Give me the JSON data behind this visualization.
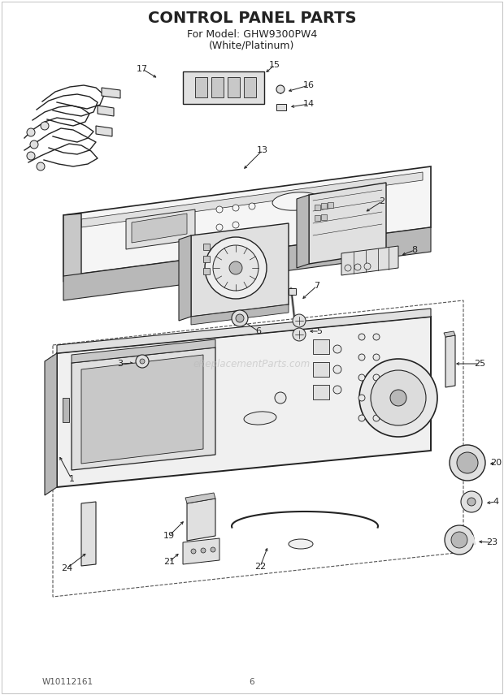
{
  "title": "CONTROL PANEL PARTS",
  "subtitle1": "For Model: GHW9300PW4",
  "subtitle2": "(White/Platinum)",
  "footer_left": "W10112161",
  "footer_center": "6",
  "bg_color": "#ffffff",
  "line_color": "#222222",
  "watermark": "eReplacementParts.com",
  "lc": "#222222",
  "gray1": "#c8c8c8",
  "gray2": "#e0e0e0",
  "gray3": "#b8b8b8",
  "dash_color": "#555555"
}
